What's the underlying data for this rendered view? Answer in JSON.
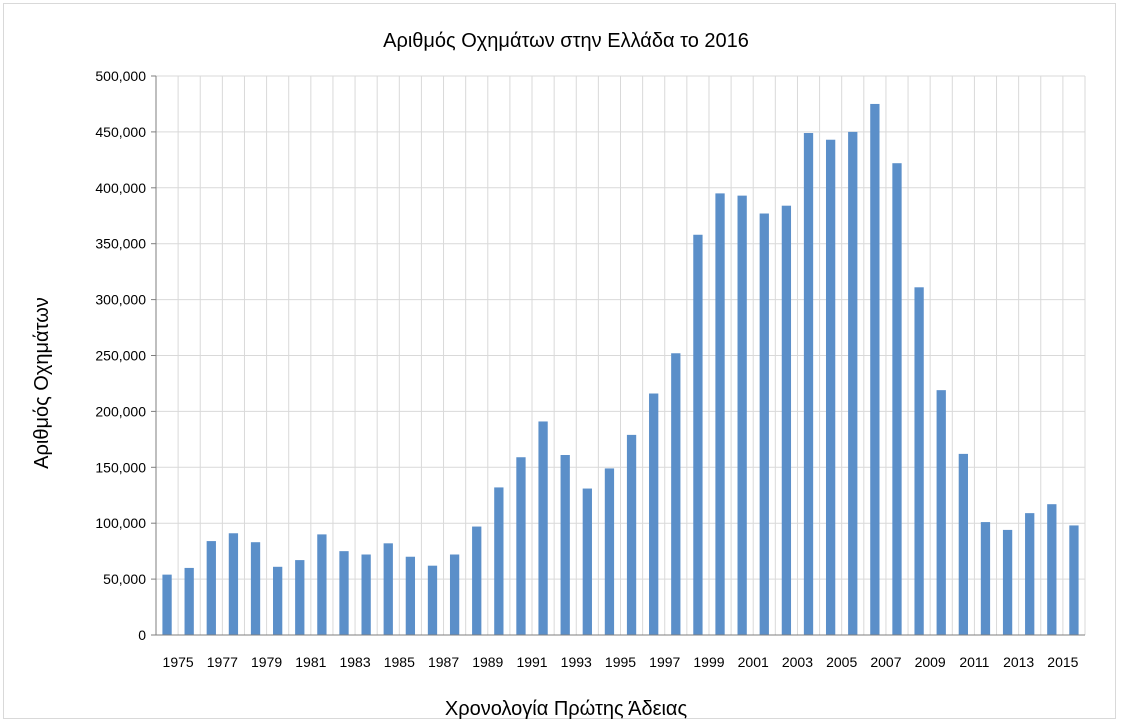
{
  "chart_data": {
    "type": "bar",
    "title": "Αριθμός Οχημάτων στην Ελλάδα το 2016",
    "xlabel": "Χρονολογία Πρώτης Άδειας",
    "ylabel": "Αριθμός Οχημάτων",
    "ylim": [
      0,
      500000
    ],
    "y_ticks": [
      "0",
      "50,000",
      "100,000",
      "150,000",
      "200,000",
      "250,000",
      "300,000",
      "350,000",
      "400,000",
      "450,000",
      "500,000"
    ],
    "x_tick_labels": [
      "1975",
      "1977",
      "1979",
      "1981",
      "1983",
      "1985",
      "1987",
      "1989",
      "1991",
      "1993",
      "1995",
      "1997",
      "1999",
      "2001",
      "2003",
      "2005",
      "2007",
      "2009",
      "2011",
      "2013",
      "2015"
    ],
    "categories": [
      "1975",
      "1976",
      "1977",
      "1978",
      "1979",
      "1980",
      "1981",
      "1982",
      "1983",
      "1984",
      "1985",
      "1986",
      "1987",
      "1988",
      "1989",
      "1990",
      "1991",
      "1992",
      "1993",
      "1994",
      "1995",
      "1996",
      "1997",
      "1998",
      "1999",
      "2000",
      "2001",
      "2002",
      "2003",
      "2004",
      "2005",
      "2006",
      "2007",
      "2008",
      "2009",
      "2010",
      "2011",
      "2012",
      "2013",
      "2014",
      "2015",
      "2016"
    ],
    "values": [
      54000,
      60000,
      84000,
      91000,
      83000,
      61000,
      67000,
      90000,
      75000,
      72000,
      82000,
      70000,
      62000,
      72000,
      97000,
      132000,
      159000,
      191000,
      161000,
      131000,
      149000,
      179000,
      216000,
      252000,
      358000,
      395000,
      393000,
      377000,
      384000,
      449000,
      443000,
      450000,
      475000,
      422000,
      311000,
      219000,
      162000,
      101000,
      94000,
      109000,
      117000,
      98000
    ],
    "grid": true,
    "legend": "none",
    "colors": {
      "bar": "#5b8fc9",
      "grid": "#d9d9d9",
      "axis": "#7f7f7f"
    }
  }
}
